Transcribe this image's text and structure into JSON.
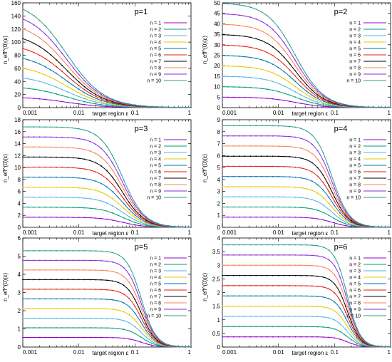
{
  "figure": {
    "ylabel": "n_eff^(0)(ε)",
    "xlabel": "target region ε"
  },
  "colors": [
    "#9400d3",
    "#009e73",
    "#56b4e9",
    "#e6c800",
    "#0072b2",
    "#e51e10",
    "#000000",
    "#ff7f50",
    "#8a2be2",
    "#2a9d8f"
  ],
  "chart_data": [
    {
      "type": "line",
      "title": "p=1",
      "log_x": true,
      "xlim": [
        0.001,
        1
      ],
      "ylim": [
        0,
        160
      ],
      "yticks": [
        0,
        20,
        40,
        60,
        80,
        100,
        120,
        140,
        160
      ],
      "xticks": [
        {
          "v": 0.001,
          "label": "0.001"
        },
        {
          "v": 0.01,
          "label": "0.01"
        },
        {
          "v": 0.1,
          "label": "0.1"
        },
        {
          "v": 1,
          "label": "1"
        }
      ],
      "p": 1,
      "series": [
        {
          "name": "n = 1",
          "n": 1
        },
        {
          "name": "n = 2",
          "n": 2
        },
        {
          "name": "n = 3",
          "n": 3
        },
        {
          "name": "n = 4",
          "n": 4
        },
        {
          "name": "n = 5",
          "n": 5
        },
        {
          "name": "n = 6",
          "n": 6
        },
        {
          "name": "n = 7",
          "n": 7
        },
        {
          "name": "n = 8",
          "n": 8
        },
        {
          "name": "n = 9",
          "n": 9
        },
        {
          "name": "n = 10",
          "n": 10
        }
      ]
    },
    {
      "type": "line",
      "title": "p=2",
      "log_x": true,
      "xlim": [
        0.001,
        1
      ],
      "ylim": [
        0,
        50
      ],
      "yticks": [
        0,
        5,
        10,
        15,
        20,
        25,
        30,
        35,
        40,
        45,
        50
      ],
      "xticks": [
        {
          "v": 0.001,
          "label": "0.001"
        },
        {
          "v": 0.01,
          "label": "0.01"
        },
        {
          "v": 0.1,
          "label": "0.1"
        },
        {
          "v": 1,
          "label": "1"
        }
      ],
      "p": 2,
      "series": [
        {
          "name": "n = 1",
          "n": 1
        },
        {
          "name": "n = 2",
          "n": 2
        },
        {
          "name": "n = 3",
          "n": 3
        },
        {
          "name": "n = 4",
          "n": 4
        },
        {
          "name": "n = 5",
          "n": 5
        },
        {
          "name": "n = 6",
          "n": 6
        },
        {
          "name": "n = 7",
          "n": 7
        },
        {
          "name": "n = 8",
          "n": 8
        },
        {
          "name": "n = 9",
          "n": 9
        },
        {
          "name": "n = 10",
          "n": 10
        }
      ]
    },
    {
      "type": "line",
      "title": "p=3",
      "log_x": true,
      "xlim": [
        0.001,
        1
      ],
      "ylim": [
        0,
        18
      ],
      "yticks": [
        0,
        2,
        4,
        6,
        8,
        10,
        12,
        14,
        16,
        18
      ],
      "xticks": [
        {
          "v": 0.001,
          "label": "0.001"
        },
        {
          "v": 0.01,
          "label": "0.01"
        },
        {
          "v": 0.1,
          "label": "0.1"
        },
        {
          "v": 1,
          "label": "1"
        }
      ],
      "p": 3,
      "series": [
        {
          "name": "n = 1",
          "n": 1
        },
        {
          "name": "n = 2",
          "n": 2
        },
        {
          "name": "n = 3",
          "n": 3
        },
        {
          "name": "n = 4",
          "n": 4
        },
        {
          "name": "n = 5",
          "n": 5
        },
        {
          "name": "n = 6",
          "n": 6
        },
        {
          "name": "n = 7",
          "n": 7
        },
        {
          "name": "n = 8",
          "n": 8
        },
        {
          "name": "n = 9",
          "n": 9
        },
        {
          "name": "n = 10",
          "n": 10
        }
      ]
    },
    {
      "type": "line",
      "title": "p=4",
      "log_x": true,
      "xlim": [
        0.001,
        1
      ],
      "ylim": [
        0,
        9
      ],
      "yticks": [
        0,
        1,
        2,
        3,
        4,
        5,
        6,
        7,
        8,
        9
      ],
      "xticks": [
        {
          "v": 0.001,
          "label": "0.001"
        },
        {
          "v": 0.01,
          "label": "0.01"
        },
        {
          "v": 0.1,
          "label": "0.1"
        },
        {
          "v": 1,
          "label": "1"
        }
      ],
      "p": 4,
      "series": [
        {
          "name": "n = 1",
          "n": 1
        },
        {
          "name": "n = 2",
          "n": 2
        },
        {
          "name": "n = 3",
          "n": 3
        },
        {
          "name": "n = 4",
          "n": 4
        },
        {
          "name": "n = 5",
          "n": 5
        },
        {
          "name": "n = 6",
          "n": 6
        },
        {
          "name": "n = 7",
          "n": 7
        },
        {
          "name": "n = 8",
          "n": 8
        },
        {
          "name": "n = 9",
          "n": 9
        },
        {
          "name": "n = 10",
          "n": 10
        }
      ]
    },
    {
      "type": "line",
      "title": "p=5",
      "log_x": true,
      "xlim": [
        0.001,
        1
      ],
      "ylim": [
        0,
        6
      ],
      "yticks": [
        0,
        1,
        2,
        3,
        4,
        5,
        6
      ],
      "xticks": [
        {
          "v": 0.001,
          "label": "0.001"
        },
        {
          "v": 0.01,
          "label": "0.01"
        },
        {
          "v": 0.1,
          "label": "0.1"
        },
        {
          "v": 1,
          "label": "1"
        }
      ],
      "p": 5,
      "series": [
        {
          "name": "n = 1",
          "n": 1
        },
        {
          "name": "n = 2",
          "n": 2
        },
        {
          "name": "n = 3",
          "n": 3
        },
        {
          "name": "n = 4",
          "n": 4
        },
        {
          "name": "n = 5",
          "n": 5
        },
        {
          "name": "n = 6",
          "n": 6
        },
        {
          "name": "n = 7",
          "n": 7
        },
        {
          "name": "n = 8",
          "n": 8
        },
        {
          "name": "n = 9",
          "n": 9
        },
        {
          "name": "n = 10",
          "n": 10
        }
      ]
    },
    {
      "type": "line",
      "title": "p=6",
      "log_x": true,
      "xlim": [
        0.001,
        1
      ],
      "ylim": [
        0,
        4
      ],
      "yticks": [
        0,
        0.5,
        1,
        1.5,
        2,
        2.5,
        3,
        3.5,
        4
      ],
      "xticks": [
        {
          "v": 0.001,
          "label": "0.001"
        },
        {
          "v": 0.01,
          "label": "0.01"
        },
        {
          "v": 0.1,
          "label": "0.1"
        },
        {
          "v": 1,
          "label": "1"
        }
      ],
      "p": 6,
      "series": [
        {
          "name": "n = 1",
          "n": 1
        },
        {
          "name": "n = 2",
          "n": 2
        },
        {
          "name": "n = 3",
          "n": 3
        },
        {
          "name": "n = 4",
          "n": 4
        },
        {
          "name": "n = 5",
          "n": 5
        },
        {
          "name": "n = 6",
          "n": 6
        },
        {
          "name": "n = 7",
          "n": 7
        },
        {
          "name": "n = 8",
          "n": 8
        },
        {
          "name": "n = 9",
          "n": 9
        },
        {
          "name": "n = 10",
          "n": 10
        }
      ]
    }
  ]
}
